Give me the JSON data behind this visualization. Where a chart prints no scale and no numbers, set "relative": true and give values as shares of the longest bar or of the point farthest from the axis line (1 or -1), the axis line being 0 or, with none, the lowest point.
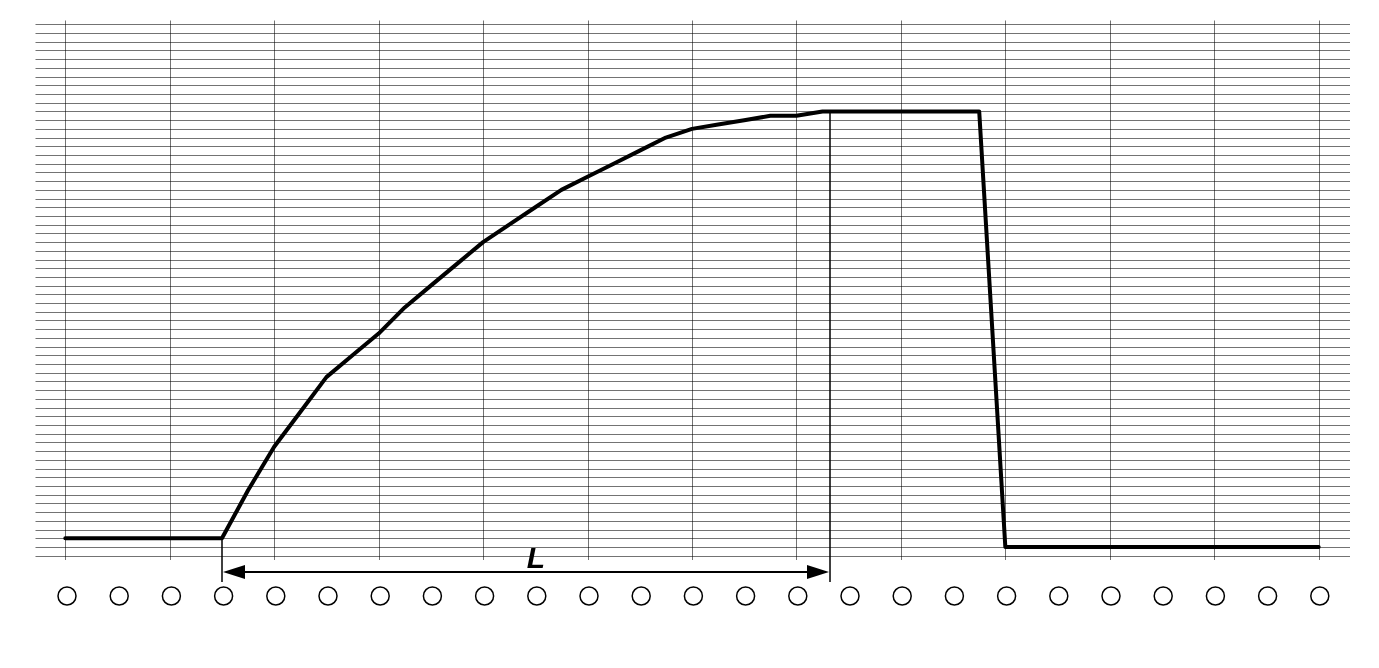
{
  "chart_data": {
    "type": "line",
    "relative": true,
    "grid": true,
    "marker": "none",
    "line_style": "solid",
    "color": "#000000",
    "annotations": [
      "L"
    ],
    "categories": [
      null,
      null,
      null,
      null,
      null,
      null,
      null,
      null,
      null,
      null,
      null,
      null,
      null,
      null,
      null,
      null,
      null,
      null,
      null,
      null,
      null,
      null,
      null,
      null,
      null,
      null,
      null,
      null,
      null,
      null,
      null,
      null,
      null,
      null,
      null,
      null,
      null,
      null,
      null,
      null,
      null,
      null,
      null,
      null,
      null,
      null,
      null,
      null,
      null
    ],
    "values": [
      0.02,
      0.02,
      0.02,
      0.02,
      0.02,
      0.02,
      0.02,
      0.13,
      0.23,
      0.31,
      0.39,
      0.44,
      0.49,
      0.55,
      0.6,
      0.65,
      0.7,
      0.74,
      0.78,
      0.82,
      0.85,
      0.88,
      0.91,
      0.94,
      0.96,
      0.97,
      0.98,
      0.99,
      0.99,
      1,
      1,
      1,
      1,
      1,
      1,
      1,
      0,
      0,
      0,
      0,
      0,
      0,
      0,
      0,
      0,
      0,
      0,
      0,
      0
    ]
  }
}
